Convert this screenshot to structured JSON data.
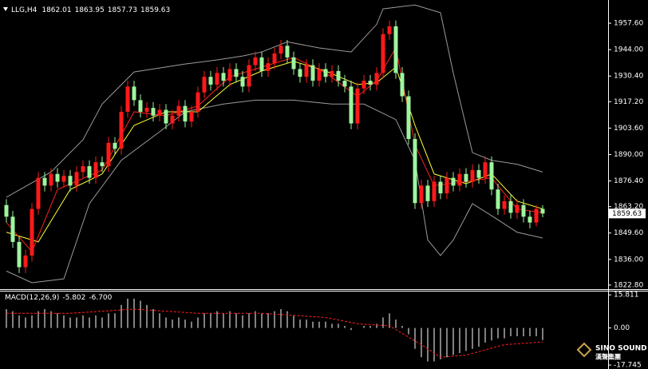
{
  "chart_data": {
    "type": "candlestick",
    "symbol": "LLG,H4",
    "up_color": "#ff1a1a",
    "down_color": "#9ef59e",
    "open": [
      1864,
      1858,
      1845,
      1832,
      1838,
      1862,
      1878,
      1874,
      1880,
      1876,
      1879,
      1874,
      1881,
      1884,
      1878,
      1886,
      1884,
      1896,
      1893,
      1912,
      1925,
      1918,
      1912,
      1914,
      1910,
      1913,
      1906,
      1910,
      1915,
      1907,
      1912,
      1922,
      1930,
      1926,
      1932,
      1928,
      1934,
      1930,
      1925,
      1936,
      1940,
      1933,
      1937,
      1942,
      1946,
      1940,
      1934,
      1930,
      1936,
      1928,
      1934,
      1930,
      1933,
      1928,
      1925,
      1906,
      1924,
      1928,
      1926,
      1932,
      1952,
      1956,
      1932,
      1920,
      1898,
      1865,
      1874,
      1866,
      1876,
      1870,
      1878,
      1874,
      1880,
      1876,
      1882,
      1878,
      1886,
      1872,
      1862,
      1866,
      1860,
      1864,
      1858,
      1855,
      1862.01
    ],
    "high": [
      1867,
      1861,
      1848,
      1841,
      1865,
      1881,
      1881,
      1883,
      1883,
      1882,
      1882,
      1884,
      1887,
      1887,
      1889,
      1889,
      1899,
      1899,
      1915,
      1928,
      1928,
      1921,
      1917,
      1917,
      1916,
      1916,
      1913,
      1918,
      1918,
      1915,
      1925,
      1933,
      1933,
      1935,
      1935,
      1937,
      1937,
      1933,
      1939,
      1943,
      1943,
      1940,
      1945,
      1949,
      1949,
      1943,
      1937,
      1939,
      1939,
      1937,
      1937,
      1936,
      1936,
      1931,
      1928,
      1927,
      1931,
      1931,
      1935,
      1955,
      1959,
      1959,
      1935,
      1923,
      1901,
      1877,
      1877,
      1879,
      1879,
      1881,
      1881,
      1883,
      1883,
      1885,
      1885,
      1889,
      1889,
      1875,
      1869,
      1869,
      1867,
      1867,
      1861,
      1864,
      1863.95
    ],
    "low": [
      1855,
      1842,
      1829,
      1829,
      1835,
      1859,
      1871,
      1871,
      1873,
      1873,
      1871,
      1871,
      1878,
      1875,
      1875,
      1881,
      1881,
      1890,
      1890,
      1909,
      1915,
      1909,
      1909,
      1907,
      1907,
      1903,
      1903,
      1907,
      1904,
      1904,
      1909,
      1919,
      1923,
      1923,
      1925,
      1925,
      1927,
      1922,
      1922,
      1933,
      1930,
      1930,
      1934,
      1939,
      1937,
      1931,
      1927,
      1927,
      1925,
      1925,
      1927,
      1927,
      1925,
      1922,
      1903,
      1903,
      1921,
      1923,
      1923,
      1929,
      1949,
      1929,
      1917,
      1895,
      1862,
      1862,
      1863,
      1863,
      1867,
      1867,
      1871,
      1871,
      1873,
      1873,
      1875,
      1875,
      1869,
      1859,
      1859,
      1857,
      1857,
      1855,
      1852,
      1853,
      1857.73
    ],
    "close": [
      1858,
      1845,
      1832,
      1838,
      1862,
      1878,
      1874,
      1880,
      1876,
      1879,
      1874,
      1881,
      1884,
      1878,
      1886,
      1884,
      1896,
      1893,
      1912,
      1925,
      1918,
      1912,
      1914,
      1910,
      1913,
      1906,
      1910,
      1915,
      1907,
      1912,
      1922,
      1930,
      1926,
      1932,
      1928,
      1934,
      1930,
      1925,
      1936,
      1940,
      1933,
      1937,
      1942,
      1946,
      1940,
      1934,
      1930,
      1936,
      1928,
      1934,
      1930,
      1933,
      1928,
      1925,
      1906,
      1924,
      1928,
      1926,
      1932,
      1952,
      1956,
      1932,
      1920,
      1898,
      1865,
      1874,
      1866,
      1876,
      1870,
      1878,
      1874,
      1880,
      1876,
      1882,
      1878,
      1886,
      1872,
      1862,
      1866,
      1860,
      1864,
      1858,
      1855,
      1862.01,
      1859.63
    ],
    "lines": [
      {
        "color": "#9a9a9a",
        "x": [
          0,
          7,
          12,
          15,
          20,
          28,
          33,
          37,
          40,
          44,
          49,
          54,
          58,
          59,
          64,
          68,
          70,
          73,
          76,
          80,
          84
        ],
        "values": [
          1868,
          1881,
          1897.6,
          1916,
          1932.5,
          1936.6,
          1938.7,
          1940.7,
          1942.8,
          1948,
          1944.9,
          1942.8,
          1957,
          1965,
          1967,
          1963,
          1932,
          1891,
          1887,
          1885,
          1881
        ]
      },
      {
        "color": "#9a9a9a",
        "x": [
          0,
          4,
          9,
          13,
          18,
          24,
          28,
          34,
          39,
          45,
          51,
          56,
          61,
          64,
          66,
          68,
          70,
          73,
          76,
          80,
          84
        ],
        "values": [
          1830,
          1824,
          1826,
          1864.7,
          1887,
          1901.7,
          1912,
          1916,
          1918,
          1918,
          1916,
          1916,
          1908,
          1887,
          1846,
          1838,
          1846,
          1864.7,
          1858.5,
          1850,
          1847
        ]
      },
      {
        "color": "#ffff33",
        "x": [
          0,
          5,
          10,
          15,
          20,
          25,
          30,
          35,
          40,
          45,
          50,
          55,
          58,
          61,
          64,
          67,
          72,
          76,
          80,
          84
        ],
        "values": [
          1850,
          1845,
          1872,
          1880,
          1905,
          1912,
          1912,
          1926,
          1933,
          1938,
          1933,
          1926,
          1927,
          1935,
          1905,
          1880,
          1875,
          1880,
          1866,
          1862
        ]
      },
      {
        "color": "#ff2020",
        "x": [
          0,
          4,
          8,
          15,
          20,
          25,
          30,
          35,
          40,
          45,
          50,
          55,
          58,
          61,
          64,
          67,
          72,
          76,
          80,
          84
        ],
        "values": [
          1855,
          1840,
          1872,
          1882,
          1912,
          1910,
          1915,
          1930,
          1935,
          1940,
          1932,
          1920,
          1928,
          1945,
          1895,
          1874,
          1876,
          1878,
          1862,
          1860
        ]
      }
    ],
    "ylim": [
      1820.7,
      1967.5
    ],
    "yticks": [
      {
        "value": 1957.6,
        "label": "1957.60"
      },
      {
        "value": 1944,
        "label": "1944.00"
      },
      {
        "value": 1930.4,
        "label": "1930.40"
      },
      {
        "value": 1917.2,
        "label": "1917.20"
      },
      {
        "value": 1903.6,
        "label": "1903.60"
      },
      {
        "value": 1890,
        "label": "1890.00"
      },
      {
        "value": 1876.4,
        "label": "1876.40"
      },
      {
        "value": 1863.2,
        "label": "1863.20"
      },
      {
        "value": 1849.6,
        "label": "1849.60"
      },
      {
        "value": 1836,
        "label": "1836.00"
      },
      {
        "value": 1822.8,
        "label": "1822.80"
      }
    ],
    "macd": {
      "indicator": "MACD(12,26,9)",
      "color": "#ffffff",
      "values": [
        9,
        8,
        6,
        5,
        6,
        8,
        9,
        8,
        7,
        6,
        5,
        5,
        6,
        5,
        6,
        5,
        7,
        7,
        11,
        14,
        14,
        13,
        11,
        9,
        7,
        5,
        4,
        5,
        4,
        3,
        5,
        7,
        7,
        8,
        7,
        8,
        7,
        6,
        7,
        8,
        7,
        7,
        8,
        9,
        8,
        6,
        4,
        4,
        3,
        3,
        3,
        2,
        2,
        1,
        -1,
        0,
        1,
        1,
        2,
        5,
        7,
        4,
        1,
        -3,
        -10,
        -14,
        -16,
        -16,
        -15,
        -14,
        -13,
        -12,
        -11,
        -10,
        -9,
        -7,
        -6,
        -5,
        -5,
        -4,
        -4,
        -4,
        -4,
        -4,
        -5.802
      ],
      "signal": {
        "color": "#ff2020",
        "x": [
          0,
          10,
          20,
          30,
          40,
          50,
          55,
          60,
          65,
          68,
          72,
          78,
          84
        ],
        "values": [
          7,
          7,
          9,
          7,
          7,
          5,
          2,
          1,
          -8,
          -14,
          -13,
          -8,
          -6.7
        ],
        "value_labels": [
          null,
          null,
          null,
          null,
          null,
          null,
          null,
          null,
          null,
          null,
          null,
          null,
          "-6.700"
        ]
      },
      "ylim": [
        -18.1,
        17.4
      ],
      "yticks": [
        15.811,
        {
          "value": 0,
          "label": "0.00"
        },
        -17.745
      ]
    },
    "watermark": [
      "SINO SOUND",
      "漢聲集團"
    ]
  }
}
